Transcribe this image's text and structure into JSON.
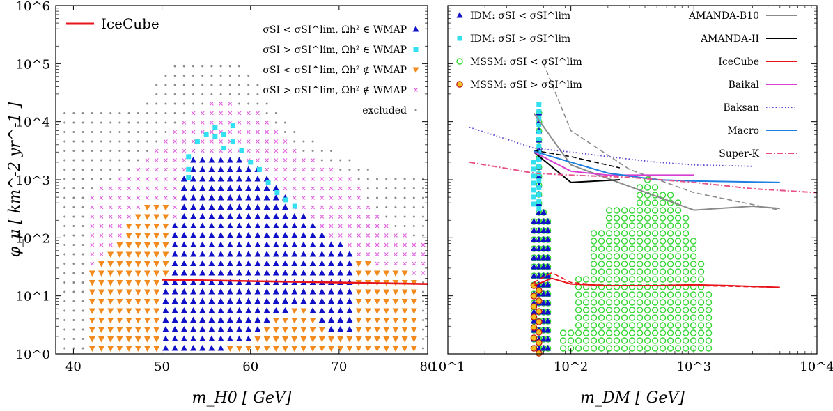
{
  "chart_data": [
    {
      "type": "scatter",
      "xlabel": "m_H0 [ GeV]",
      "ylabel": "φ_μ [ km^-2 yr^-1 ]",
      "xlim": [
        38,
        80
      ],
      "ylim": [
        1,
        1000000
      ],
      "yscale": "log",
      "xticks": [
        "40",
        "50",
        "60",
        "70",
        "80"
      ],
      "yticks": [
        "10^0",
        "10^1",
        "10^2",
        "10^3",
        "10^4",
        "10^5",
        "10^6"
      ],
      "legend_placement": "top",
      "legend": [
        {
          "name": "IceCube",
          "marker": "line",
          "color": "#e8141b"
        },
        {
          "name": "σSI < σSI^lim, Ωh² ∈ WMAP",
          "marker": "triangle-up",
          "color": "#1010c8"
        },
        {
          "name": "σSI > σSI^lim, Ωh² ∈ WMAP",
          "marker": "square",
          "color": "#33e0f0"
        },
        {
          "name": "σSI < σSI^lim, Ωh² ∉ WMAP",
          "marker": "triangle-down",
          "color": "#f28a1e"
        },
        {
          "name": "σSI > σSI^lim, Ωh² ∉ WMAP",
          "marker": "cross",
          "color": "#e060e0"
        },
        {
          "name": "excluded",
          "marker": "dot",
          "color": "#8a8a8a"
        }
      ],
      "icecube_line": {
        "x": [
          50,
          80
        ],
        "y": [
          19,
          16
        ]
      },
      "regions": {
        "excluded_hull": [
          [
            39,
            15
          ],
          [
            39,
            1.2
          ],
          [
            80,
            1.2
          ],
          [
            80,
            1100.0
          ],
          [
            75,
            1100.0
          ],
          [
            70,
            3000.0
          ],
          [
            65,
            8000.0
          ],
          [
            62,
            20000.0
          ],
          [
            60,
            80000.0
          ],
          [
            58,
            110000.0
          ],
          [
            51,
            110000.0
          ],
          [
            48,
            20000.0
          ],
          [
            44,
            15000.0
          ],
          [
            39,
            15000.0
          ]
        ],
        "pink_hull": [
          [
            42,
            30
          ],
          [
            42,
            600
          ],
          [
            46,
            1200
          ],
          [
            48,
            2500
          ],
          [
            50,
            5000
          ],
          [
            52,
            12000.0
          ],
          [
            55,
            20000.0
          ],
          [
            58,
            22000.0
          ],
          [
            61,
            15000.0
          ],
          [
            63,
            7000
          ],
          [
            66,
            3000
          ],
          [
            70,
            1500
          ],
          [
            72,
            800
          ],
          [
            75,
            200
          ],
          [
            80,
            80
          ],
          [
            80,
            20
          ],
          [
            50,
            20
          ]
        ],
        "orange_hull": [
          [
            42,
            0.9
          ],
          [
            42,
            28
          ],
          [
            44,
            60
          ],
          [
            46,
            150
          ],
          [
            48,
            350
          ],
          [
            50,
            500
          ],
          [
            51,
            300
          ],
          [
            52,
            120
          ],
          [
            55,
            80
          ],
          [
            65,
            80
          ],
          [
            70,
            60
          ],
          [
            74,
            35
          ],
          [
            78,
            25
          ],
          [
            79,
            18
          ],
          [
            79,
            0.9
          ]
        ],
        "blue_hull": [
          [
            50,
            0.9
          ],
          [
            50,
            8
          ],
          [
            51,
            60
          ],
          [
            52,
            600
          ],
          [
            53,
            2000
          ],
          [
            54,
            3000
          ],
          [
            58,
            3000
          ],
          [
            61,
            1500
          ],
          [
            63,
            800
          ],
          [
            65,
            300
          ],
          [
            68,
            150
          ],
          [
            70,
            80
          ],
          [
            72,
            40
          ],
          [
            72,
            5
          ],
          [
            71,
            2
          ],
          [
            68,
            3
          ],
          [
            66,
            8
          ],
          [
            63,
            4
          ],
          [
            60,
            1.5
          ],
          [
            57,
            1.2
          ],
          [
            55,
            0.9
          ]
        ],
        "cyan_points": [
          [
            53,
            1500
          ],
          [
            53,
            2500
          ],
          [
            54,
            4500
          ],
          [
            55,
            6000
          ],
          [
            56,
            5500
          ],
          [
            57,
            6000
          ],
          [
            58,
            4500
          ],
          [
            59,
            3200
          ],
          [
            60,
            2000
          ],
          [
            61,
            1500
          ],
          [
            62,
            900
          ],
          [
            63,
            600
          ],
          [
            64,
            450
          ],
          [
            65,
            350
          ],
          [
            53,
            1100
          ],
          [
            56,
            8000
          ],
          [
            58,
            8500
          ],
          [
            57,
            3500
          ]
        ]
      }
    },
    {
      "type": "line",
      "xlabel": "m_DM [ GeV]",
      "xlim": [
        10,
        10000
      ],
      "ylim": [
        1,
        1000000
      ],
      "xscale": "log",
      "yscale": "log",
      "xticks": [
        "10^1",
        "10^2",
        "10^3",
        "10^4"
      ],
      "legend_placement": "top",
      "legend_points": [
        {
          "name": "IDM: σSI < σSI^lim",
          "marker": "triangle-up",
          "color": "#1010c8"
        },
        {
          "name": "IDM: σSI > σSI^lim",
          "marker": "square",
          "color": "#33e0f0"
        },
        {
          "name": "MSSM: σSI < σSI^lim",
          "marker": "circle-open",
          "color": "#33d633"
        },
        {
          "name": "MSSM: σSI > σSI^lim",
          "marker": "circle-filled",
          "color": "#f0c020"
        }
      ],
      "series": [
        {
          "name": "AMANDA-B10",
          "color": "#8a8a8a",
          "style": "solid",
          "x": [
            50,
            100,
            1000,
            3000,
            5000
          ],
          "y": [
            14000.0,
            1800,
            300,
            350,
            320
          ]
        },
        {
          "name": "AMANDA-II",
          "color": "#000000",
          "style": "solid",
          "x": [
            50,
            100,
            250
          ],
          "y": [
            3000,
            900,
            1000
          ]
        },
        {
          "name": "IceCube",
          "color": "#e8141b",
          "style": "solid",
          "x": [
            50,
            70,
            100,
            200,
            500,
            1000,
            2000,
            5000
          ],
          "y": [
            15,
            20,
            16,
            15,
            15,
            15.5,
            15,
            14
          ]
        },
        {
          "name": "Baikal",
          "color": "#d63fd0",
          "style": "solid",
          "x": [
            50,
            100,
            200,
            500,
            1000
          ],
          "y": [
            3000,
            1400,
            1200,
            1200,
            1200
          ]
        },
        {
          "name": "Baksan",
          "color": "#5a3fd0",
          "style": "dotted",
          "x": [
            15,
            30,
            50,
            100,
            200,
            500,
            1000,
            3000
          ],
          "y": [
            8000,
            5000,
            3500,
            3000,
            2500,
            2000,
            1800,
            1700
          ]
        },
        {
          "name": "Macro",
          "color": "#1f7fe0",
          "style": "solid",
          "x": [
            50,
            100,
            200,
            500,
            1000,
            5000
          ],
          "y": [
            3100,
            2000,
            1300,
            1000,
            950,
            900
          ]
        },
        {
          "name": "Super-K",
          "color": "#e8508a",
          "style": "dashdot",
          "x": [
            15,
            50,
            100,
            300,
            1000,
            3000,
            10000
          ],
          "y": [
            2000,
            1300,
            1200,
            1100,
            900,
            700,
            600
          ]
        }
      ],
      "dashed_overlays": [
        {
          "color": "#8a8a8a",
          "x": [
            60,
            100,
            300,
            1000,
            5000
          ],
          "y": [
            100000.0,
            7000,
            1500,
            600,
            300
          ]
        },
        {
          "color": "#000000",
          "x": [
            50,
            100,
            250
          ],
          "y": [
            3200,
            2500,
            1600
          ]
        },
        {
          "color": "#e8141b",
          "x": [
            50,
            70,
            100,
            200,
            1000,
            5000
          ],
          "y": [
            17,
            25,
            17,
            15,
            15,
            14
          ]
        }
      ]
    }
  ]
}
